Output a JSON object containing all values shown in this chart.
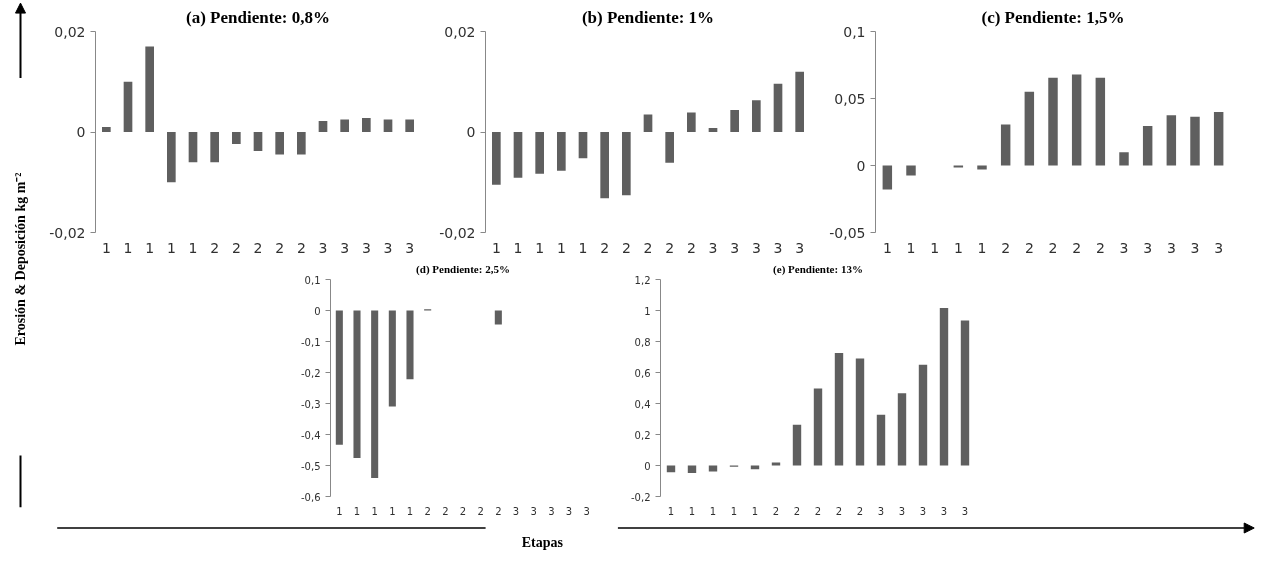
{
  "chart_data": [
    {
      "type": "bar",
      "title": "(a) Pendiente: 0,8%",
      "ylabel": "Erosión & Deposición kg m⁻²",
      "categories": [
        "1",
        "1",
        "1",
        "1",
        "1",
        "2",
        "2",
        "2",
        "2",
        "2",
        "3",
        "3",
        "3",
        "3",
        "3"
      ],
      "values": [
        0.001,
        0.01,
        0.017,
        -0.01,
        -0.006,
        -0.006,
        -0.0024,
        -0.0038,
        -0.0045,
        -0.0045,
        0.0022,
        0.0025,
        0.0028,
        0.0025,
        0.0025
      ],
      "color": "#5f5f5f",
      "ylim": [
        -0.02,
        0.02
      ],
      "yticks": [
        {
          "value": -0.02,
          "label": "-0,02"
        },
        {
          "value": 0,
          "label": "0"
        },
        {
          "value": 0.02,
          "label": "0,02"
        }
      ],
      "grid": false,
      "legend": false
    },
    {
      "type": "bar",
      "title": "(b) Pendiente: 1%",
      "categories": [
        "1",
        "1",
        "1",
        "1",
        "1",
        "2",
        "2",
        "2",
        "2",
        "2",
        "3",
        "3",
        "3",
        "3",
        "3"
      ],
      "values": [
        -0.0105,
        -0.0091,
        -0.0083,
        -0.0077,
        -0.0052,
        -0.0132,
        -0.0126,
        0.0035,
        -0.0061,
        0.0039,
        0.0008,
        0.0044,
        0.0063,
        0.0096,
        0.012
      ],
      "color": "#5f5f5f",
      "ylim": [
        -0.02,
        0.02
      ],
      "yticks": [
        {
          "value": -0.02,
          "label": "-0,02"
        },
        {
          "value": 0,
          "label": "0"
        },
        {
          "value": 0.02,
          "label": "0,02"
        }
      ],
      "grid": false,
      "legend": false
    },
    {
      "type": "bar",
      "title": "(c) Pendiente: 1,5%",
      "categories": [
        "1",
        "1",
        "1",
        "1",
        "1",
        "2",
        "2",
        "2",
        "2",
        "2",
        "3",
        "3",
        "3",
        "3",
        "3"
      ],
      "values": [
        -0.018,
        -0.0075,
        0,
        -0.0015,
        -0.003,
        0.0306,
        0.055,
        0.0655,
        0.0679,
        0.0655,
        0.0099,
        0.0294,
        0.0375,
        0.0363,
        0.04
      ],
      "color": "#5f5f5f",
      "ylim": [
        -0.05,
        0.1
      ],
      "yticks": [
        {
          "value": -0.05,
          "label": "-0,05"
        },
        {
          "value": 0,
          "label": "0"
        },
        {
          "value": 0.05,
          "label": "0,05"
        },
        {
          "value": 0.1,
          "label": "0,1"
        }
      ],
      "grid": false,
      "legend": false
    },
    {
      "type": "bar",
      "title": "(d) Pendiente: 2,5%",
      "xlabel": "Etapas",
      "categories": [
        "1",
        "1",
        "1",
        "1",
        "1",
        "2",
        "2",
        "2",
        "2",
        "2",
        "3",
        "3",
        "3",
        "3",
        "3"
      ],
      "values": [
        -0.433,
        -0.476,
        -0.54,
        -0.31,
        -0.222,
        0.004,
        0,
        0,
        0,
        -0.045,
        0,
        0,
        0,
        0,
        0
      ],
      "color": "#5f5f5f",
      "ylim": [
        -0.6,
        0.1
      ],
      "yticks": [
        {
          "value": -0.6,
          "label": "-0,6"
        },
        {
          "value": -0.5,
          "label": "-0,5"
        },
        {
          "value": -0.4,
          "label": "-0,4"
        },
        {
          "value": -0.3,
          "label": "-0,3"
        },
        {
          "value": -0.2,
          "label": "-0,2"
        },
        {
          "value": -0.1,
          "label": "-0,1"
        },
        {
          "value": 0,
          "label": "0"
        },
        {
          "value": 0.1,
          "label": "0,1"
        }
      ],
      "grid": false,
      "legend": false
    },
    {
      "type": "bar",
      "title": "(e) Pendiente: 13%",
      "categories": [
        "1",
        "1",
        "1",
        "1",
        "1",
        "2",
        "2",
        "2",
        "2",
        "2",
        "3",
        "3",
        "3",
        "3",
        "3"
      ],
      "values": [
        -0.043,
        -0.049,
        -0.038,
        -0.008,
        -0.024,
        0.019,
        0.263,
        0.496,
        0.726,
        0.691,
        0.328,
        0.466,
        0.65,
        1.016,
        0.935
      ],
      "color": "#5f5f5f",
      "ylim": [
        -0.2,
        1.2
      ],
      "yticks": [
        {
          "value": -0.2,
          "label": "-0,2"
        },
        {
          "value": 0,
          "label": "0"
        },
        {
          "value": 0.2,
          "label": "0,2"
        },
        {
          "value": 0.4,
          "label": "0,4"
        },
        {
          "value": 0.6,
          "label": "0,6"
        },
        {
          "value": 0.8,
          "label": "0,8"
        },
        {
          "value": 1,
          "label": "1"
        },
        {
          "value": 1.2,
          "label": "1,2"
        }
      ],
      "grid": false,
      "legend": false
    }
  ]
}
